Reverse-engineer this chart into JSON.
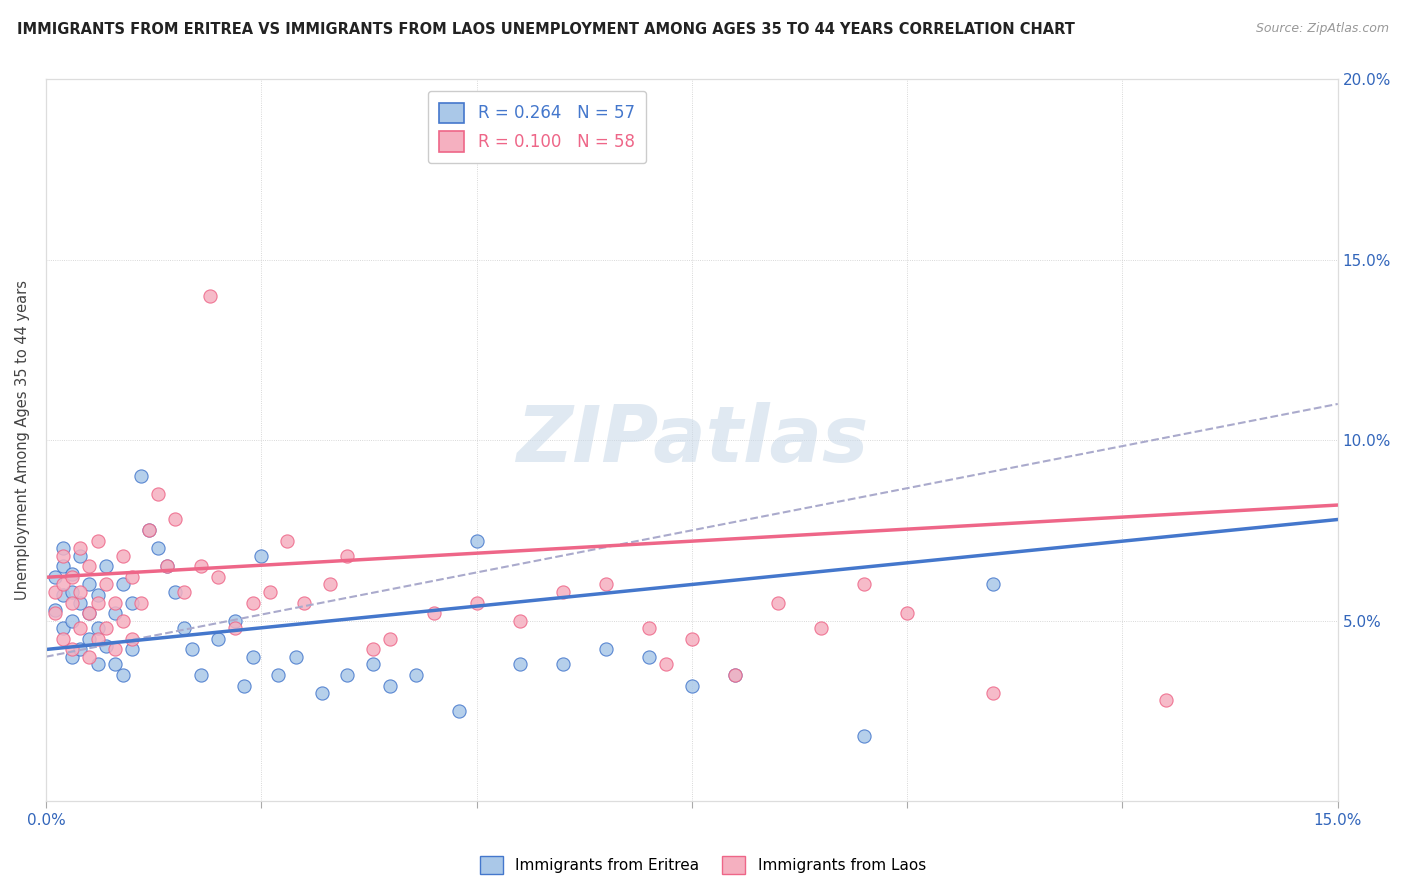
{
  "title": "IMMIGRANTS FROM ERITREA VS IMMIGRANTS FROM LAOS UNEMPLOYMENT AMONG AGES 35 TO 44 YEARS CORRELATION CHART",
  "source": "Source: ZipAtlas.com",
  "ylabel": "Unemployment Among Ages 35 to 44 years",
  "xlim": [
    0.0,
    0.15
  ],
  "ylim": [
    0.0,
    0.2
  ],
  "eritrea_R": 0.264,
  "eritrea_N": 57,
  "laos_R": 0.1,
  "laos_N": 58,
  "eritrea_color": "#aac8e8",
  "laos_color": "#f5b0c0",
  "eritrea_line_color": "#4477cc",
  "laos_line_color": "#ee6688",
  "dashed_line_color": "#aaaacc",
  "background_color": "#ffffff",
  "eritrea_scatter_x": [
    0.001,
    0.001,
    0.002,
    0.002,
    0.002,
    0.002,
    0.003,
    0.003,
    0.003,
    0.003,
    0.004,
    0.004,
    0.004,
    0.005,
    0.005,
    0.005,
    0.006,
    0.006,
    0.006,
    0.007,
    0.007,
    0.008,
    0.008,
    0.009,
    0.009,
    0.01,
    0.01,
    0.011,
    0.012,
    0.013,
    0.014,
    0.015,
    0.016,
    0.017,
    0.018,
    0.02,
    0.022,
    0.023,
    0.024,
    0.025,
    0.027,
    0.029,
    0.032,
    0.035,
    0.038,
    0.04,
    0.043,
    0.048,
    0.05,
    0.055,
    0.06,
    0.065,
    0.07,
    0.075,
    0.08,
    0.095,
    0.11
  ],
  "eritrea_scatter_y": [
    0.053,
    0.062,
    0.048,
    0.057,
    0.065,
    0.07,
    0.04,
    0.05,
    0.058,
    0.063,
    0.042,
    0.055,
    0.068,
    0.045,
    0.052,
    0.06,
    0.038,
    0.048,
    0.057,
    0.043,
    0.065,
    0.038,
    0.052,
    0.035,
    0.06,
    0.042,
    0.055,
    0.09,
    0.075,
    0.07,
    0.065,
    0.058,
    0.048,
    0.042,
    0.035,
    0.045,
    0.05,
    0.032,
    0.04,
    0.068,
    0.035,
    0.04,
    0.03,
    0.035,
    0.038,
    0.032,
    0.035,
    0.025,
    0.072,
    0.038,
    0.038,
    0.042,
    0.04,
    0.032,
    0.035,
    0.018,
    0.06
  ],
  "laos_scatter_x": [
    0.001,
    0.001,
    0.002,
    0.002,
    0.002,
    0.003,
    0.003,
    0.003,
    0.004,
    0.004,
    0.004,
    0.005,
    0.005,
    0.005,
    0.006,
    0.006,
    0.006,
    0.007,
    0.007,
    0.008,
    0.008,
    0.009,
    0.009,
    0.01,
    0.01,
    0.011,
    0.012,
    0.013,
    0.014,
    0.015,
    0.016,
    0.018,
    0.019,
    0.02,
    0.022,
    0.024,
    0.026,
    0.028,
    0.03,
    0.033,
    0.035,
    0.038,
    0.04,
    0.045,
    0.05,
    0.055,
    0.06,
    0.065,
    0.07,
    0.072,
    0.075,
    0.08,
    0.085,
    0.09,
    0.095,
    0.1,
    0.11,
    0.13
  ],
  "laos_scatter_y": [
    0.052,
    0.058,
    0.045,
    0.06,
    0.068,
    0.042,
    0.055,
    0.062,
    0.048,
    0.058,
    0.07,
    0.04,
    0.052,
    0.065,
    0.045,
    0.055,
    0.072,
    0.048,
    0.06,
    0.042,
    0.055,
    0.05,
    0.068,
    0.045,
    0.062,
    0.055,
    0.075,
    0.085,
    0.065,
    0.078,
    0.058,
    0.065,
    0.14,
    0.062,
    0.048,
    0.055,
    0.058,
    0.072,
    0.055,
    0.06,
    0.068,
    0.042,
    0.045,
    0.052,
    0.055,
    0.05,
    0.058,
    0.06,
    0.048,
    0.038,
    0.045,
    0.035,
    0.055,
    0.048,
    0.06,
    0.052,
    0.03,
    0.028
  ],
  "eritrea_trendline": [
    0.042,
    0.078
  ],
  "laos_trendline": [
    0.062,
    0.082
  ],
  "dashed_trendline": [
    0.04,
    0.11
  ]
}
